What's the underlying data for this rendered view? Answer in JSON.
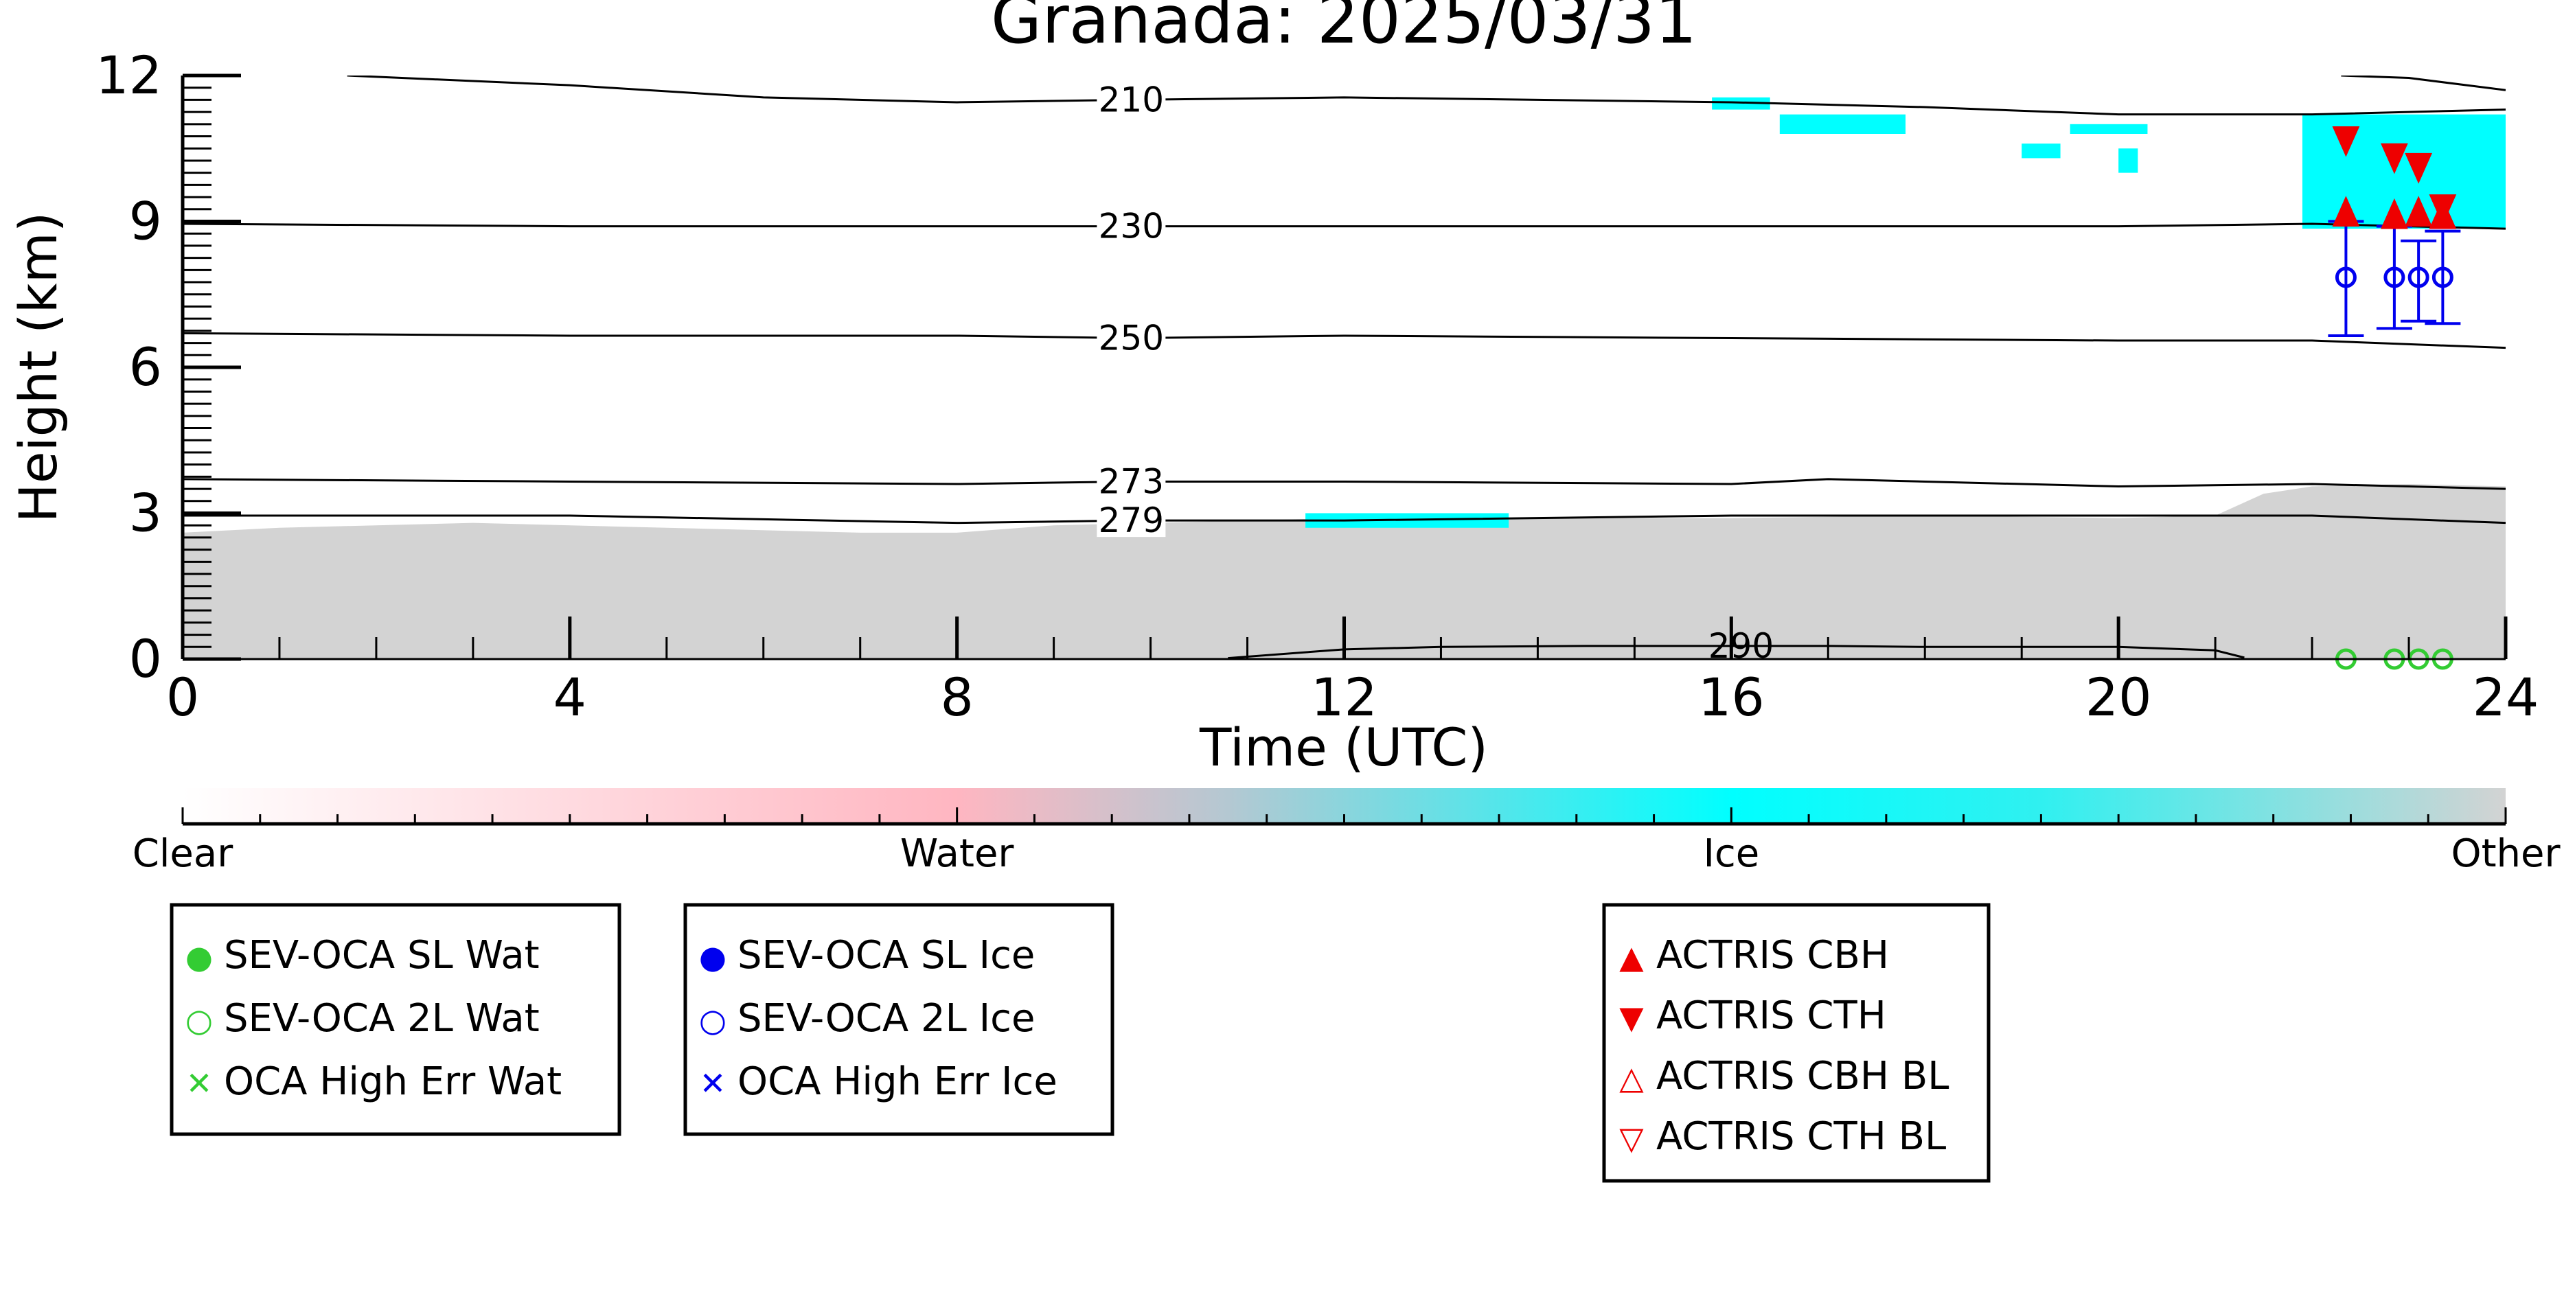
{
  "chart_data": {
    "type": "heatmap",
    "title": "Granada: 2025/03/31",
    "xlabel": "Time (UTC)",
    "ylabel": "Height (km)",
    "xlim": [
      0,
      24
    ],
    "ylim": [
      0,
      12
    ],
    "x_ticks": [
      "0",
      "4",
      "8",
      "12",
      "16",
      "20",
      "24"
    ],
    "y_ticks": [
      "0",
      "3",
      "6",
      "9",
      "12"
    ],
    "grid": false,
    "colorbar": {
      "labels": [
        "Clear",
        "Water",
        "Ice",
        "Other"
      ],
      "colors": [
        "#ffffff",
        "#ffb6c1",
        "#00ffff",
        "#d3d3d3"
      ]
    },
    "temperature_contours": [
      {
        "label": "210",
        "label_x": 9.8,
        "points": [
          [
            1.7,
            12.0
          ],
          [
            4,
            11.8
          ],
          [
            6,
            11.55
          ],
          [
            8,
            11.45
          ],
          [
            9.8,
            11.5
          ],
          [
            12,
            11.55
          ],
          [
            14,
            11.5
          ],
          [
            16,
            11.45
          ],
          [
            18,
            11.35
          ],
          [
            20,
            11.2
          ],
          [
            22,
            11.2
          ],
          [
            24,
            11.3
          ]
        ]
      },
      {
        "label": "210",
        "label_x": null,
        "points": [
          [
            22.3,
            12.0
          ],
          [
            23,
            11.95
          ],
          [
            24,
            11.7
          ]
        ]
      },
      {
        "label": "230",
        "label_x": 9.8,
        "points": [
          [
            0,
            8.95
          ],
          [
            4,
            8.9
          ],
          [
            8,
            8.9
          ],
          [
            9.8,
            8.9
          ],
          [
            12,
            8.9
          ],
          [
            16,
            8.9
          ],
          [
            20,
            8.9
          ],
          [
            22,
            8.95
          ],
          [
            24,
            8.85
          ]
        ]
      },
      {
        "label": "250",
        "label_x": 9.8,
        "points": [
          [
            0,
            6.7
          ],
          [
            4,
            6.65
          ],
          [
            8,
            6.65
          ],
          [
            9.8,
            6.6
          ],
          [
            12,
            6.65
          ],
          [
            16,
            6.6
          ],
          [
            20,
            6.55
          ],
          [
            22,
            6.55
          ],
          [
            24,
            6.4
          ]
        ]
      },
      {
        "label": "273",
        "label_x": 9.8,
        "points": [
          [
            0,
            3.7
          ],
          [
            4,
            3.65
          ],
          [
            8,
            3.6
          ],
          [
            9.8,
            3.65
          ],
          [
            12,
            3.65
          ],
          [
            16,
            3.6
          ],
          [
            17,
            3.7
          ],
          [
            20,
            3.55
          ],
          [
            22,
            3.6
          ],
          [
            24,
            3.5
          ]
        ]
      },
      {
        "label": "279",
        "label_x": 9.8,
        "points": [
          [
            0,
            2.95
          ],
          [
            4,
            2.95
          ],
          [
            8,
            2.8
          ],
          [
            9.8,
            2.85
          ],
          [
            12,
            2.85
          ],
          [
            16,
            2.95
          ],
          [
            20,
            2.95
          ],
          [
            22,
            2.95
          ],
          [
            24,
            2.8
          ]
        ]
      },
      {
        "label": "290",
        "label_x": 16.1,
        "points": [
          [
            10.8,
            0.02
          ],
          [
            12,
            0.2
          ],
          [
            13,
            0.25
          ],
          [
            14.5,
            0.27
          ],
          [
            16.1,
            0.27
          ],
          [
            17,
            0.27
          ],
          [
            18,
            0.25
          ],
          [
            19,
            0.25
          ],
          [
            20,
            0.25
          ],
          [
            21,
            0.18
          ],
          [
            21.3,
            0.03
          ]
        ]
      }
    ],
    "series": [
      {
        "name": "SEV-OCA SL Wat",
        "marker": "filled-circle",
        "color": "#33cc33",
        "points": []
      },
      {
        "name": "SEV-OCA 2L Wat",
        "marker": "open-circle",
        "color": "#33cc33",
        "points": [
          [
            22.35,
            0.0
          ],
          [
            22.85,
            0.0
          ],
          [
            23.1,
            0.0
          ],
          [
            23.35,
            0.0
          ]
        ]
      },
      {
        "name": "OCA High Err Wat",
        "marker": "x",
        "color": "#33cc33",
        "points": []
      },
      {
        "name": "SEV-OCA SL Ice",
        "marker": "filled-circle",
        "color": "#0000ee",
        "points": []
      },
      {
        "name": "SEV-OCA 2L Ice",
        "marker": "open-circle",
        "color": "#0000ee",
        "points": [
          [
            22.35,
            7.85,
            6.65,
            9.0
          ],
          [
            22.85,
            7.85,
            6.8,
            8.9
          ],
          [
            23.1,
            7.85,
            6.95,
            8.6
          ],
          [
            23.35,
            7.85,
            6.9,
            8.8
          ]
        ]
      },
      {
        "name": "OCA High Err Ice",
        "marker": "x",
        "color": "#0000ee",
        "points": []
      },
      {
        "name": "ACTRIS CBH",
        "marker": "filled-triangle-up",
        "color": "#ee0000",
        "points": [
          [
            22.35,
            9.1
          ],
          [
            22.85,
            9.05
          ],
          [
            23.1,
            9.1
          ],
          [
            23.35,
            9.05
          ]
        ]
      },
      {
        "name": "ACTRIS CTH",
        "marker": "filled-triangle-down",
        "color": "#ee0000",
        "points": [
          [
            22.35,
            10.75
          ],
          [
            22.85,
            10.4
          ],
          [
            23.1,
            10.2
          ],
          [
            23.35,
            9.35
          ]
        ]
      },
      {
        "name": "ACTRIS CBH BL",
        "marker": "open-triangle-up",
        "color": "#ee0000",
        "points": []
      },
      {
        "name": "ACTRIS CTH BL",
        "marker": "open-triangle-down",
        "color": "#ee0000",
        "points": []
      }
    ],
    "regions": {
      "other_boundary_layer_top": [
        [
          0,
          2.6
        ],
        [
          1,
          2.7
        ],
        [
          3,
          2.8
        ],
        [
          5,
          2.7
        ],
        [
          7,
          2.6
        ],
        [
          8,
          2.6
        ],
        [
          9,
          2.75
        ],
        [
          10,
          2.8
        ],
        [
          12,
          2.9
        ],
        [
          14,
          2.9
        ],
        [
          16,
          2.9
        ],
        [
          18,
          2.95
        ],
        [
          20,
          2.9
        ],
        [
          21,
          2.95
        ],
        [
          21.5,
          3.4
        ],
        [
          22,
          3.55
        ],
        [
          23,
          3.6
        ],
        [
          24,
          3.55
        ]
      ],
      "ice_patches": [
        {
          "from_x": 15.8,
          "to_x": 16.4,
          "bottom": 11.3,
          "top": 11.55
        },
        {
          "from_x": 16.5,
          "to_x": 17.8,
          "bottom": 10.8,
          "top": 11.2
        },
        {
          "from_x": 19.0,
          "to_x": 19.4,
          "bottom": 10.3,
          "top": 10.6
        },
        {
          "from_x": 19.5,
          "to_x": 20.3,
          "bottom": 10.8,
          "top": 11.0
        },
        {
          "from_x": 20.0,
          "to_x": 20.2,
          "bottom": 10.0,
          "top": 10.5
        },
        {
          "from_x": 21.9,
          "to_x": 24.0,
          "bottom": 8.85,
          "top": 11.2
        },
        {
          "from_x": 11.6,
          "to_x": 13.7,
          "bottom": 2.7,
          "top": 3.0
        }
      ]
    }
  },
  "legends": [
    {
      "entries": [
        "SEV-OCA SL Wat",
        "SEV-OCA 2L Wat",
        "OCA High Err Wat"
      ],
      "symbols": [
        "●",
        "○",
        "✕"
      ],
      "color": "#33cc33"
    },
    {
      "entries": [
        "SEV-OCA SL Ice",
        "SEV-OCA 2L Ice",
        "OCA High Err Ice"
      ],
      "symbols": [
        "●",
        "○",
        "✕"
      ],
      "color": "#0000ee"
    },
    {
      "entries": [
        "ACTRIS CBH",
        "ACTRIS CTH",
        "ACTRIS CBH BL",
        "ACTRIS CTH BL"
      ],
      "symbols": [
        "▲",
        "▼",
        "△",
        "▽"
      ],
      "color": "#ee0000"
    }
  ]
}
